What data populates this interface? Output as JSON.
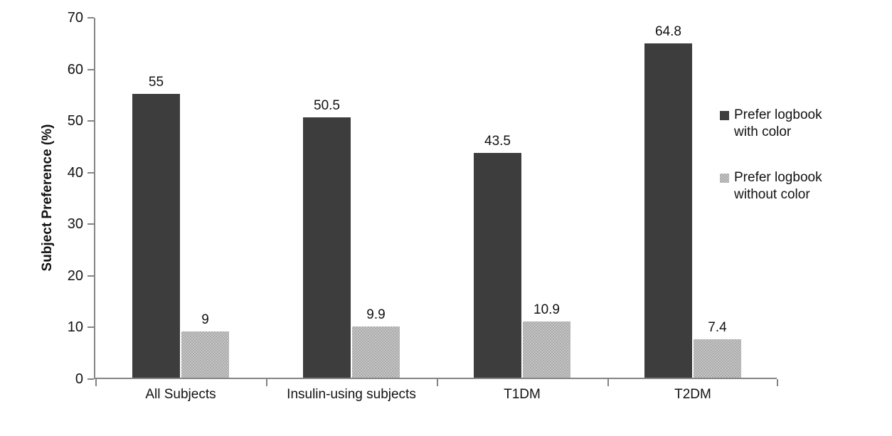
{
  "chart_data": {
    "type": "bar",
    "title": "",
    "xlabel": "",
    "ylabel": "Subject Preference (%)",
    "categories": [
      "All Subjects",
      "Insulin-using subjects",
      "T1DM",
      "T2DM"
    ],
    "series": [
      {
        "name": "Prefer logbook with color",
        "values": [
          55,
          50.5,
          43.5,
          64.8
        ],
        "labels": [
          "55",
          "50.5",
          "43.5",
          "64.8"
        ],
        "color": "#3d3d3d",
        "pattern": "solid"
      },
      {
        "name": "Prefer logbook without color",
        "values": [
          9,
          9.9,
          10.9,
          7.4
        ],
        "labels": [
          "9",
          "9.9",
          "10.9",
          "7.4"
        ],
        "color": "#bdbdbd",
        "pattern": "dither"
      }
    ],
    "ylim": [
      0,
      70
    ],
    "yticks": [
      0,
      10,
      20,
      30,
      40,
      50,
      60,
      70
    ],
    "grid": false,
    "legend_position": "right",
    "axis_color": "#848484",
    "text_color": "#111111",
    "background": "#ffffff"
  }
}
